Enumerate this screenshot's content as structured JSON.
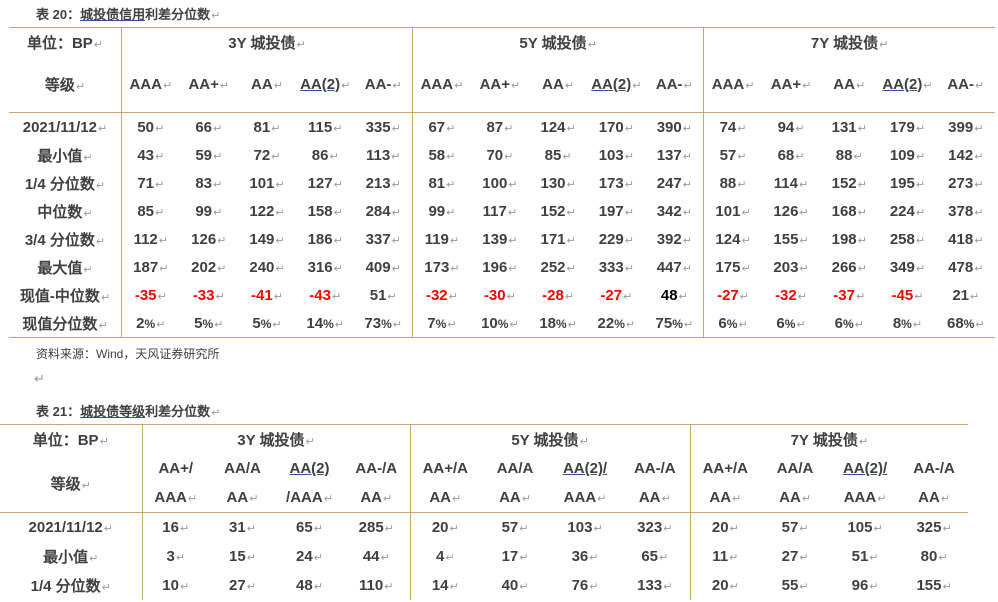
{
  "t20": {
    "caption_prefix": "表 20：",
    "caption_ul": "城投债信用",
    "caption_rest": "利差分位数",
    "unit": "单位：BP",
    "grade": "等级",
    "groups": [
      "3Y 城投债",
      "5Y 城投债",
      "7Y 城投债"
    ],
    "cols": [
      "AAA",
      "AA+",
      "AA",
      "AA(2)",
      "AA-"
    ],
    "rows": [
      {
        "label": "2021/11/12",
        "vals": [
          "50",
          "66",
          "81",
          "115",
          "335",
          "67",
          "87",
          "124",
          "170",
          "390",
          "74",
          "94",
          "131",
          "179",
          "399"
        ]
      },
      {
        "label": "最小值",
        "vals": [
          "43",
          "59",
          "72",
          "86",
          "113",
          "58",
          "70",
          "85",
          "103",
          "137",
          "57",
          "68",
          "88",
          "109",
          "142"
        ]
      },
      {
        "label": "1/4 分位数",
        "vals": [
          "71",
          "83",
          "101",
          "127",
          "213",
          "81",
          "100",
          "130",
          "173",
          "247",
          "88",
          "114",
          "152",
          "195",
          "273"
        ]
      },
      {
        "label": "中位数",
        "vals": [
          "85",
          "99",
          "122",
          "158",
          "284",
          "99",
          "117",
          "152",
          "197",
          "342",
          "101",
          "126",
          "168",
          "224",
          "378"
        ]
      },
      {
        "label": "3/4 分位数",
        "vals": [
          "112",
          "126",
          "149",
          "186",
          "337",
          "119",
          "139",
          "171",
          "229",
          "392",
          "124",
          "155",
          "198",
          "258",
          "418"
        ]
      },
      {
        "label": "最大值",
        "vals": [
          "187",
          "202",
          "240",
          "316",
          "409",
          "173",
          "196",
          "252",
          "333",
          "447",
          "175",
          "203",
          "266",
          "349",
          "478"
        ]
      },
      {
        "label": "现值-中位数",
        "vals": [
          "-35",
          "-33",
          "-41",
          "-43",
          "51",
          "-32",
          "-30",
          "-28",
          "-27",
          "48",
          "-27",
          "-32",
          "-37",
          "-45",
          "21"
        ]
      },
      {
        "label": "现值分位数",
        "vals": [
          "2%",
          "5%",
          "5%",
          "14%",
          "73%",
          "7%",
          "10%",
          "18%",
          "22%",
          "75%",
          "6%",
          "6%",
          "6%",
          "8%",
          "68%"
        ]
      }
    ]
  },
  "source": "资料来源：Wind，天风证券研究所",
  "t21": {
    "caption_prefix": "表 21：",
    "caption_ul": "城投债等级",
    "caption_rest": "利差分位数",
    "unit": "单位：BP",
    "grade": "等级",
    "groups": [
      "3Y 城投债",
      "5Y 城投债",
      "7Y 城投债"
    ],
    "cols_top": [
      "AA+/",
      "AA/A",
      "AA(2)",
      "AA-/A"
    ],
    "cols_bot": [
      "AAA",
      "AA",
      "/AAA",
      "AA"
    ],
    "cols_top_5y": [
      "AA+/A",
      "AA/A",
      "AA(2)/",
      "AA-/A"
    ],
    "cols_bot_5y": [
      "AA",
      "AA",
      "AAA",
      "AA"
    ],
    "rows": [
      {
        "label": "2021/11/12",
        "vals": [
          "16",
          "31",
          "65",
          "285",
          "20",
          "57",
          "103",
          "323",
          "20",
          "57",
          "105",
          "325"
        ]
      },
      {
        "label": "最小值",
        "vals": [
          "3",
          "15",
          "24",
          "44",
          "4",
          "17",
          "36",
          "65",
          "11",
          "27",
          "51",
          "80"
        ]
      },
      {
        "label": "1/4 分位数",
        "vals": [
          "10",
          "27",
          "48",
          "110",
          "14",
          "40",
          "76",
          "133",
          "20",
          "55",
          "96",
          "155"
        ]
      }
    ]
  }
}
